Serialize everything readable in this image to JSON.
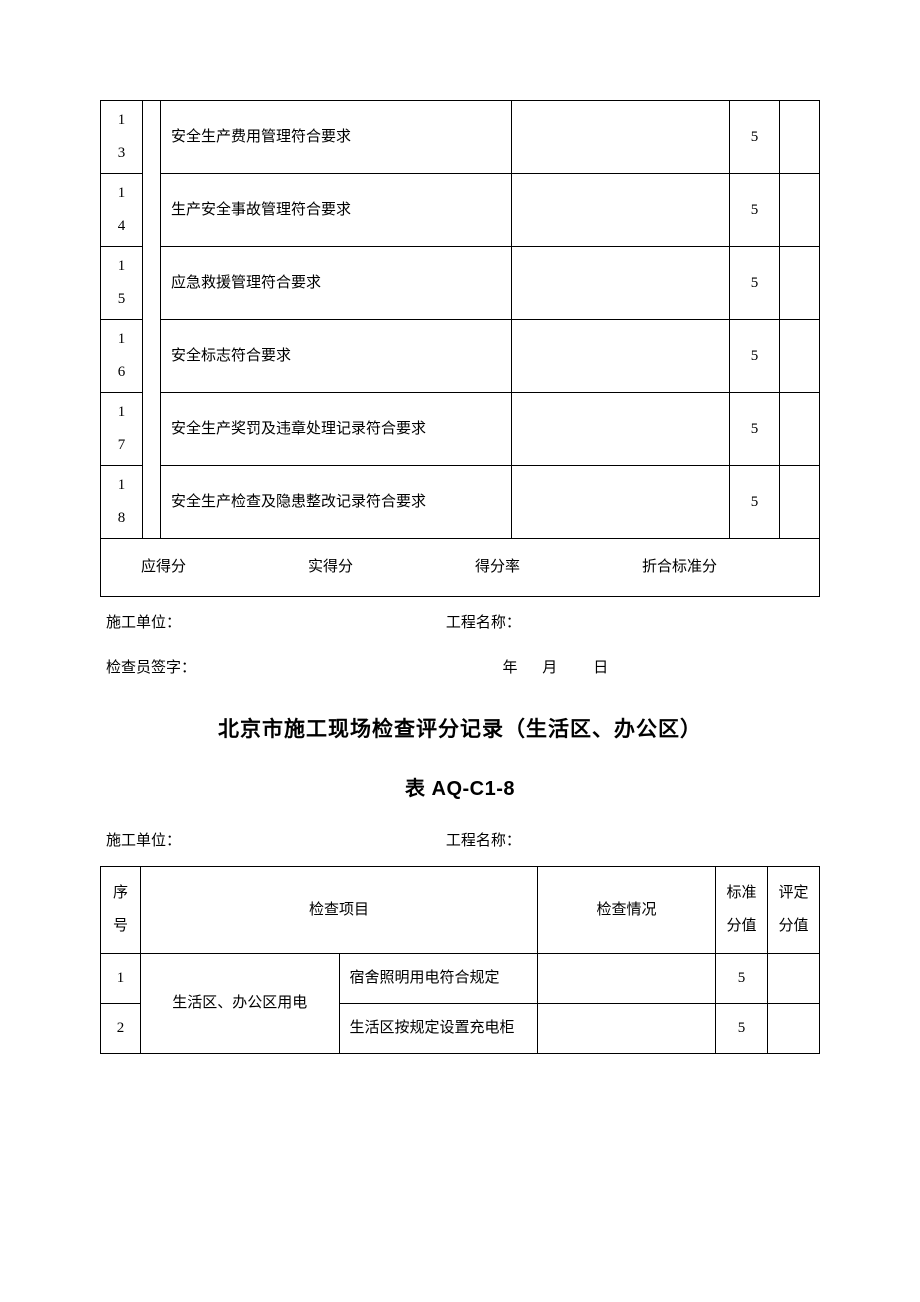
{
  "table1": {
    "rows": [
      {
        "seq": "13",
        "desc": "安全生产费用管理符合要求",
        "score": "5"
      },
      {
        "seq": "14",
        "desc": "生产安全事故管理符合要求",
        "score": "5"
      },
      {
        "seq": "15",
        "desc": "应急救援管理符合要求",
        "score": "5"
      },
      {
        "seq": "16",
        "desc": "安全标志符合要求",
        "score": "5"
      },
      {
        "seq": "17",
        "desc": "安全生产奖罚及违章处理记录符合要求",
        "score": "5"
      },
      {
        "seq": "18",
        "desc": "安全生产检查及隐患整改记录符合要求",
        "score": "5"
      }
    ],
    "summary": {
      "label1": "应得分",
      "label2": "实得分",
      "label3": "得分率",
      "label4": "折合标准分"
    }
  },
  "meta": {
    "construction_unit_label": "施工单位：",
    "project_name_label": "工程名称：",
    "inspector_label": "检查员签字：",
    "date_label": "年　 月　　日"
  },
  "section2": {
    "title": "北京市施工现场检查评分记录（生活区、办公区）",
    "subtitle": "表 AQ-C1-8",
    "headers": {
      "seq": "序号",
      "item": "检查项目",
      "check": "检查情况",
      "std": "标准分值",
      "eval": "评定分值"
    },
    "category": "生活区、办公区用电",
    "rows": [
      {
        "seq": "1",
        "desc": "宿舍照明用电符合规定",
        "score": "5"
      },
      {
        "seq": "2",
        "desc": "生活区按规定设置充电柜",
        "score": "5"
      }
    ]
  }
}
